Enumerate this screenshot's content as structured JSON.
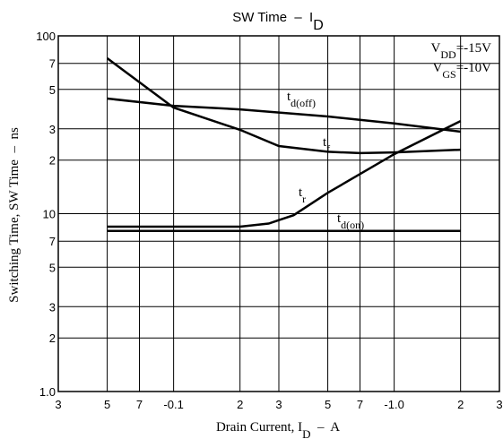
{
  "chart_data": {
    "type": "line",
    "title": [
      "SW Time  –  I",
      "D"
    ],
    "x_label": [
      "Drain Current, I",
      "D",
      "  –  A"
    ],
    "y_label": [
      "Switching Time, SW Time  –  ns"
    ],
    "annotations": [
      [
        "V",
        "DD",
        "=-15V"
      ],
      [
        "V",
        "GS",
        "=-10V"
      ]
    ],
    "log_x": true,
    "log_y": true,
    "grid": true,
    "xlim": [
      0.03,
      3
    ],
    "ylim": [
      1,
      100
    ],
    "xticks": [
      {
        "value": 0.03,
        "label": "3"
      },
      {
        "value": 0.05,
        "label": "5"
      },
      {
        "value": 0.07,
        "label": "7"
      },
      {
        "value": 0.1,
        "label": "-0.1"
      },
      {
        "value": 0.2,
        "label": "2"
      },
      {
        "value": 0.3,
        "label": "3"
      },
      {
        "value": 0.5,
        "label": "5"
      },
      {
        "value": 0.7,
        "label": "7"
      },
      {
        "value": 1,
        "label": "-1.0"
      },
      {
        "value": 2,
        "label": "2"
      },
      {
        "value": 3,
        "label": "3"
      }
    ],
    "yticks": [
      {
        "value": 1,
        "label": "1.0"
      },
      2,
      3,
      5,
      7,
      10,
      {
        "value": 20,
        "label": "2"
      },
      {
        "value": 30,
        "label": "3"
      },
      {
        "value": 50,
        "label": "5"
      },
      {
        "value": 70,
        "label": "7"
      },
      100
    ],
    "series": [
      {
        "label": [
          "t",
          "d(off)"
        ],
        "color": "#000000",
        "x": [
          0.05,
          0.1,
          0.2,
          0.5,
          1,
          2
        ],
        "values": [
          44.4,
          40.4,
          38.6,
          35.2,
          32.2,
          28.9
        ]
      },
      {
        "label": [
          "t",
          "f"
        ],
        "color": "#000000",
        "x": [
          0.05,
          0.1,
          0.2,
          0.3,
          0.5,
          0.7,
          1,
          2
        ],
        "values": [
          74.8,
          39.5,
          29.6,
          24,
          22.3,
          21.9,
          22.1,
          22.9
        ]
      },
      {
        "label": [
          "t",
          "r"
        ],
        "color": "#000000",
        "x": [
          0.05,
          0.2,
          0.27,
          0.3,
          0.35,
          0.5,
          1,
          2
        ],
        "values": [
          8.45,
          8.45,
          8.8,
          9.2,
          9.8,
          13.1,
          21.6,
          33.2
        ]
      },
      {
        "label": [
          "t",
          "d(on)"
        ],
        "color": "#000000",
        "x": [
          0.05,
          2
        ],
        "values": [
          8,
          8
        ]
      }
    ]
  }
}
